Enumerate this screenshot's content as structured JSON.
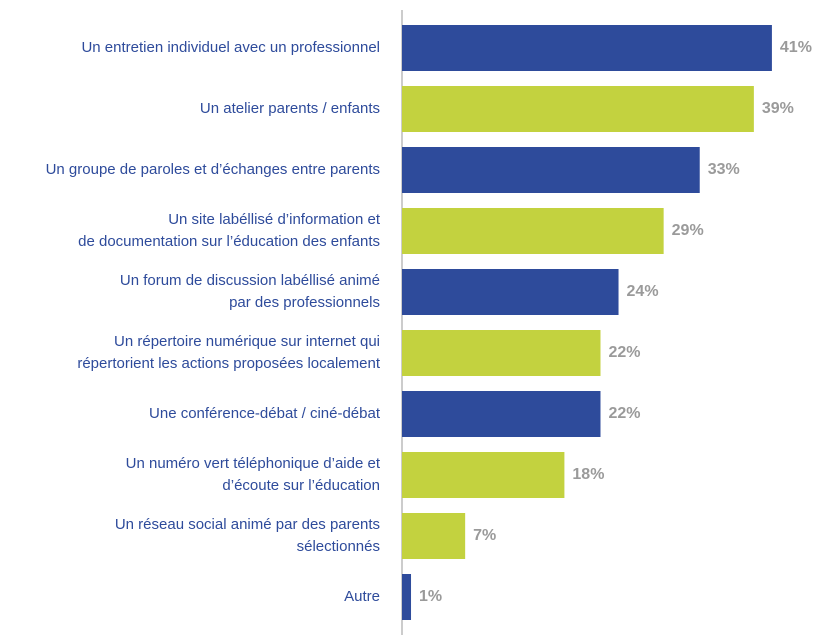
{
  "chart_data": {
    "type": "barh",
    "categories": [
      [
        "Un entretien individuel avec un professionnel"
      ],
      [
        "Un atelier parents / enfants"
      ],
      [
        "Un groupe de paroles et d’échanges entre parents"
      ],
      [
        "Un site labéllisé d’information et",
        "de documentation sur l’éducation des enfants"
      ],
      [
        "Un forum de discussion labéllisé animé",
        "par des professionnels"
      ],
      [
        "Un répertoire numérique sur internet qui",
        "répertorient les actions proposées localement"
      ],
      [
        "Une conférence-débat / ciné-débat"
      ],
      [
        "Un numéro vert téléphonique d’aide et",
        "d’écoute sur l’éducation"
      ],
      [
        "Un réseau social animé par des parents",
        "sélectionnés"
      ],
      [
        "Autre"
      ]
    ],
    "values": [
      41,
      39,
      33,
      29,
      24,
      22,
      22,
      18,
      7,
      1
    ],
    "value_labels": [
      "41%",
      "39%",
      "33%",
      "29%",
      "24%",
      "22%",
      "22%",
      "18%",
      "7%",
      "1%"
    ],
    "colors": [
      "#2e4b9b",
      "#c3d23f",
      "#2e4b9b",
      "#c3d23f",
      "#2e4b9b",
      "#c3d23f",
      "#2e4b9b",
      "#c3d23f",
      "#c3d23f",
      "#2e4b9b"
    ],
    "xlim": [
      0,
      45
    ]
  }
}
